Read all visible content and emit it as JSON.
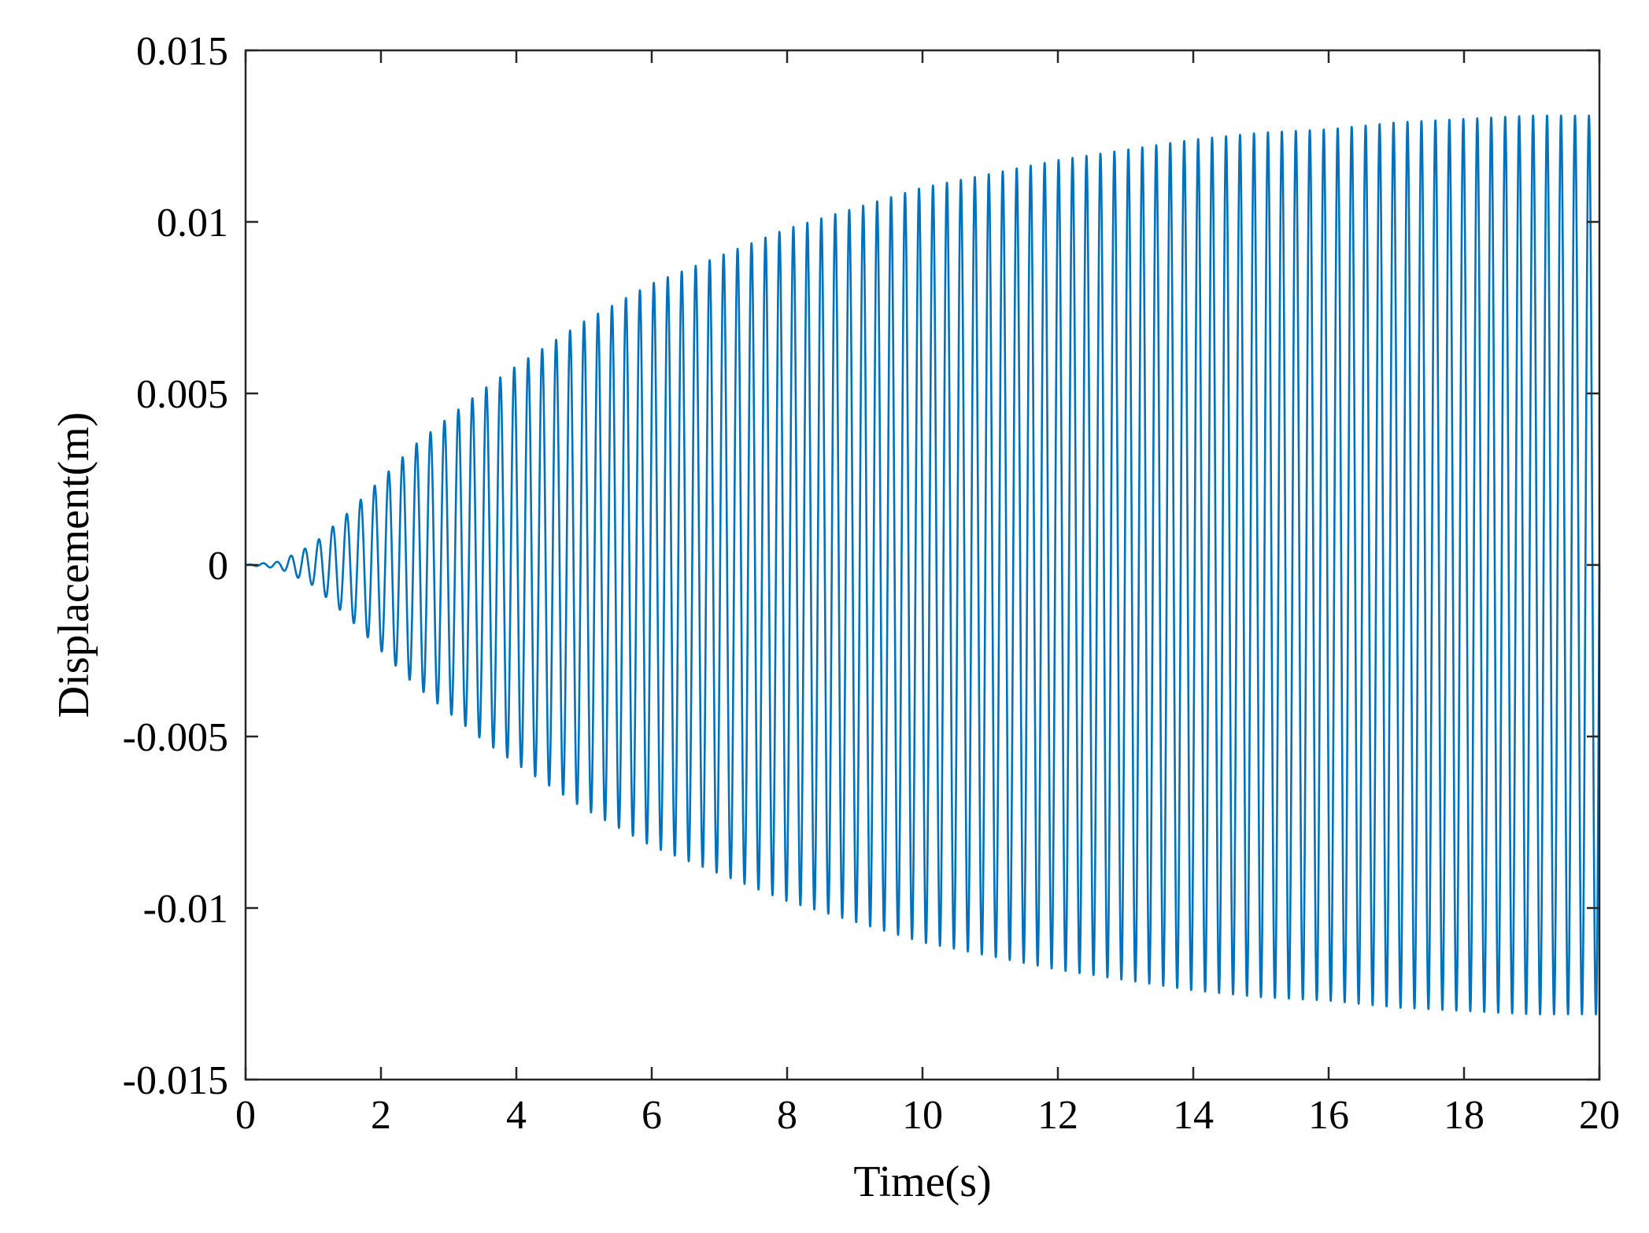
{
  "chart_data": {
    "type": "line",
    "title": "",
    "xlabel": "Time(s)",
    "ylabel": "Displacement(m)",
    "xlim": [
      0,
      20
    ],
    "ylim": [
      -0.015,
      0.015
    ],
    "x_ticks": [
      0,
      2,
      4,
      6,
      8,
      10,
      12,
      14,
      16,
      18,
      20
    ],
    "x_tick_labels": [
      "0",
      "2",
      "4",
      "6",
      "8",
      "10",
      "12",
      "14",
      "16",
      "18",
      "20"
    ],
    "y_ticks": [
      -0.015,
      -0.01,
      -0.005,
      0,
      0.005,
      0.01,
      0.015
    ],
    "y_tick_labels": [
      "-0.015",
      "-0.01",
      "-0.005",
      "0",
      "0.005",
      "0.01",
      "0.015"
    ],
    "grid": false,
    "legend": "none",
    "series": [
      {
        "color": "#0072BD",
        "envelope_time": [
          0,
          0.5,
          1,
          1.5,
          2,
          2.5,
          3,
          3.5,
          4,
          5,
          6,
          7,
          8,
          9,
          10,
          11,
          12,
          13,
          14,
          15,
          16,
          17,
          18,
          19,
          20
        ],
        "envelope_amplitude": [
          0,
          0.0001,
          0.0006,
          0.0015,
          0.0025,
          0.0035,
          0.0043,
          0.0051,
          0.0058,
          0.0071,
          0.0082,
          0.009,
          0.0098,
          0.0104,
          0.011,
          0.0114,
          0.0118,
          0.0121,
          0.0124,
          0.0126,
          0.0127,
          0.0129,
          0.013,
          0.0131,
          0.0131
        ],
        "oscillation_frequency_hz": 4.85
      }
    ]
  }
}
